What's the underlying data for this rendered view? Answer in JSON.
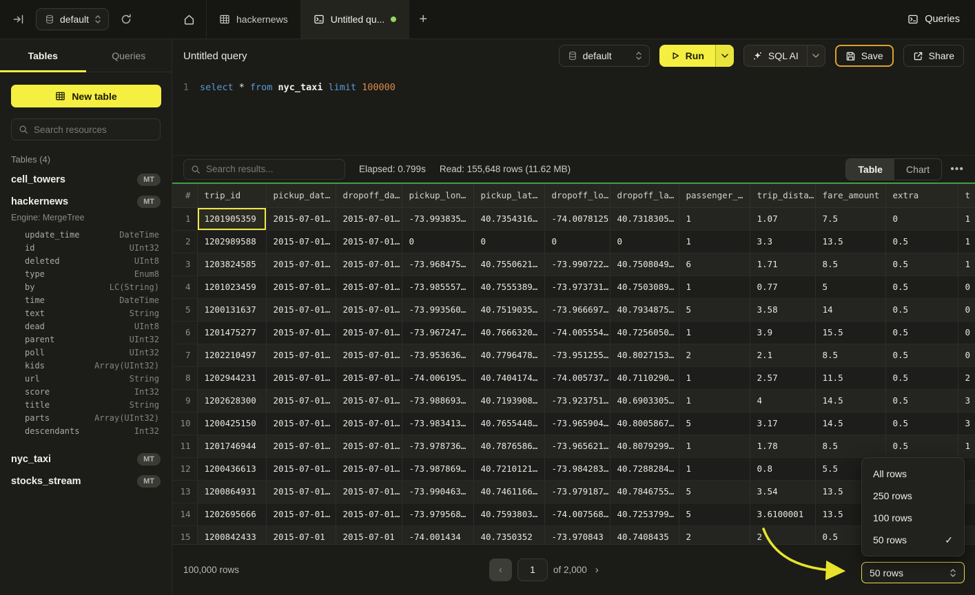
{
  "topbar": {
    "database_selector": "default",
    "tabs": [
      {
        "label": "hackernews"
      },
      {
        "label": "Untitled qu...",
        "modified": true
      }
    ],
    "queries_button_label": "Queries"
  },
  "sidebar": {
    "tabs": {
      "tables": "Tables",
      "queries": "Queries"
    },
    "new_table_label": "New table",
    "search_placeholder": "Search resources",
    "section_label": "Tables (4)",
    "tables": [
      {
        "name": "cell_towers",
        "badge": "MT"
      },
      {
        "name": "hackernews",
        "badge": "MT",
        "engine": "Engine: MergeTree",
        "columns": [
          {
            "name": "update_time",
            "type": "DateTime"
          },
          {
            "name": "id",
            "type": "UInt32"
          },
          {
            "name": "deleted",
            "type": "UInt8"
          },
          {
            "name": "type",
            "type": "Enum8"
          },
          {
            "name": "by",
            "type": "LC(String)"
          },
          {
            "name": "time",
            "type": "DateTime"
          },
          {
            "name": "text",
            "type": "String"
          },
          {
            "name": "dead",
            "type": "UInt8"
          },
          {
            "name": "parent",
            "type": "UInt32"
          },
          {
            "name": "poll",
            "type": "UInt32"
          },
          {
            "name": "kids",
            "type": "Array(UInt32)"
          },
          {
            "name": "url",
            "type": "String"
          },
          {
            "name": "score",
            "type": "Int32"
          },
          {
            "name": "title",
            "type": "String"
          },
          {
            "name": "parts",
            "type": "Array(UInt32)"
          },
          {
            "name": "descendants",
            "type": "Int32"
          }
        ]
      },
      {
        "name": "nyc_taxi",
        "badge": "MT"
      },
      {
        "name": "stocks_stream",
        "badge": "MT"
      }
    ]
  },
  "query_header": {
    "title": "Untitled query",
    "database_selector": "default",
    "run_label": "Run",
    "sql_ai_label": "SQL AI",
    "save_label": "Save",
    "share_label": "Share"
  },
  "editor": {
    "line_number": "1",
    "tokens": [
      {
        "text": "select",
        "type": "keyword"
      },
      {
        "text": "*",
        "type": "operator"
      },
      {
        "text": "from",
        "type": "keyword"
      },
      {
        "text": "nyc_taxi",
        "type": "identifier"
      },
      {
        "text": "limit",
        "type": "keyword"
      },
      {
        "text": "100000",
        "type": "number"
      }
    ]
  },
  "results": {
    "search_placeholder": "Search results...",
    "elapsed": "Elapsed: 0.799s",
    "read": "Read: 155,648 rows (11.62 MB)",
    "view_tabs": [
      {
        "label": "Table",
        "active": true
      },
      {
        "label": "Chart",
        "active": false
      }
    ],
    "table": {
      "columns": [
        "#",
        "trip_id",
        "pickup_dat…",
        "dropoff_da…",
        "pickup_lon…",
        "pickup_lat…",
        "dropoff_lo…",
        "dropoff_la…",
        "passenger_…",
        "trip_dista…",
        "fare_amount",
        "extra",
        "t"
      ],
      "selected_cell": {
        "row": 0,
        "col": 1
      },
      "rows": [
        [
          "1",
          "1201905359",
          "2015-07-01…",
          "2015-07-01…",
          "-73.993835…",
          "40.7354316…",
          "-74.0078125",
          "40.7318305…",
          "1",
          "1.07",
          "7.5",
          "0",
          "1"
        ],
        [
          "2",
          "1202989588",
          "2015-07-01…",
          "2015-07-01…",
          "0",
          "0",
          "0",
          "0",
          "1",
          "3.3",
          "13.5",
          "0.5",
          "1"
        ],
        [
          "3",
          "1203824585",
          "2015-07-01…",
          "2015-07-01…",
          "-73.968475…",
          "40.7550621…",
          "-73.990722…",
          "40.7508049…",
          "6",
          "1.71",
          "8.5",
          "0.5",
          "1"
        ],
        [
          "4",
          "1201023459",
          "2015-07-01…",
          "2015-07-01…",
          "-73.985557…",
          "40.7555389…",
          "-73.973731…",
          "40.7503089…",
          "1",
          "0.77",
          "5",
          "0.5",
          "0"
        ],
        [
          "5",
          "1200131637",
          "2015-07-01…",
          "2015-07-01…",
          "-73.993560…",
          "40.7519035…",
          "-73.966697…",
          "40.7934875…",
          "5",
          "3.58",
          "14",
          "0.5",
          "0"
        ],
        [
          "6",
          "1201475277",
          "2015-07-01…",
          "2015-07-01…",
          "-73.967247…",
          "40.7666320…",
          "-74.005554…",
          "40.7256050…",
          "1",
          "3.9",
          "15.5",
          "0.5",
          "0"
        ],
        [
          "7",
          "1202210497",
          "2015-07-01…",
          "2015-07-01…",
          "-73.953636…",
          "40.7796478…",
          "-73.951255…",
          "40.8027153…",
          "2",
          "2.1",
          "8.5",
          "0.5",
          "0"
        ],
        [
          "8",
          "1202944231",
          "2015-07-01…",
          "2015-07-01…",
          "-74.006195…",
          "40.7404174…",
          "-74.005737…",
          "40.7110290…",
          "1",
          "2.57",
          "11.5",
          "0.5",
          "2"
        ],
        [
          "9",
          "1202628300",
          "2015-07-01…",
          "2015-07-01…",
          "-73.988693…",
          "40.7193908…",
          "-73.923751…",
          "40.6903305…",
          "1",
          "4",
          "14.5",
          "0.5",
          "3"
        ],
        [
          "10",
          "1200425150",
          "2015-07-01…",
          "2015-07-01…",
          "-73.983413…",
          "40.7655448…",
          "-73.965904…",
          "40.8005867…",
          "5",
          "3.17",
          "14.5",
          "0.5",
          "3"
        ],
        [
          "11",
          "1201746944",
          "2015-07-01…",
          "2015-07-01…",
          "-73.978736…",
          "40.7876586…",
          "-73.965621…",
          "40.8079299…",
          "1",
          "1.78",
          "8.5",
          "0.5",
          "1"
        ],
        [
          "12",
          "1200436613",
          "2015-07-01…",
          "2015-07-01…",
          "-73.987869…",
          "40.7210121…",
          "-73.984283…",
          "40.7288284…",
          "1",
          "0.8",
          "5.5",
          "",
          ""
        ],
        [
          "13",
          "1200864931",
          "2015-07-01…",
          "2015-07-01…",
          "-73.990463…",
          "40.7461166…",
          "-73.979187…",
          "40.7846755…",
          "5",
          "3.54",
          "13.5",
          "",
          ""
        ],
        [
          "14",
          "1202695666",
          "2015-07-01…",
          "2015-07-01…",
          "-73.979568…",
          "40.7593803…",
          "-74.007568…",
          "40.7253799…",
          "5",
          "3.6100001",
          "13.5",
          "",
          ""
        ],
        [
          "15",
          "1200842433",
          "2015-07-01",
          "2015-07-01",
          "-74.001434",
          "40.7350352",
          "-73.970843",
          "40.7408435",
          "2",
          "2",
          "0.5",
          "",
          ""
        ]
      ]
    }
  },
  "footer": {
    "row_count": "100,000 rows",
    "page_input": "1",
    "page_total": "of 2,000",
    "rows_dropdown": "50 rows"
  },
  "rows_menu": {
    "items": [
      {
        "label": "All rows",
        "checked": false
      },
      {
        "label": "250 rows",
        "checked": false
      },
      {
        "label": "100 rows",
        "checked": false
      },
      {
        "label": "50 rows",
        "checked": true
      }
    ]
  },
  "colors": {
    "accent_yellow": "#f4ef40",
    "accent_green": "#43a047",
    "save_border": "#dca22e",
    "tab_dot_green": "#95d85e"
  }
}
